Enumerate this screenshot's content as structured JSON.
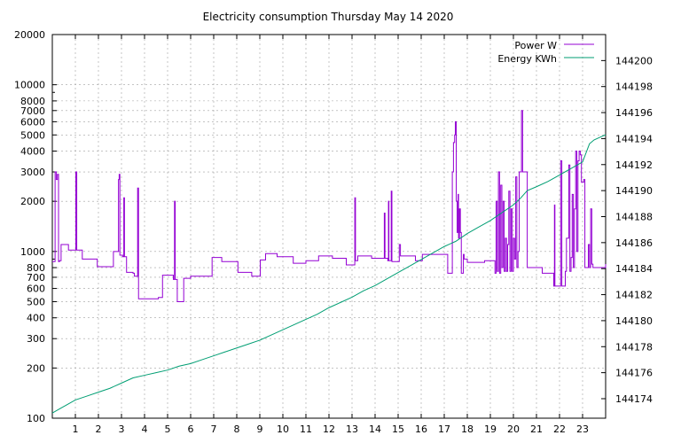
{
  "chart_data": {
    "type": "line",
    "title": "Electricity consumption Thursday May 14 2020",
    "xlabel": "",
    "ylabel": "",
    "y2label": "",
    "grid": true,
    "legend_position": "top-right",
    "x_range": [
      0,
      24
    ],
    "x_ticks": [
      1,
      2,
      3,
      4,
      5,
      6,
      7,
      8,
      9,
      10,
      11,
      12,
      13,
      14,
      15,
      16,
      17,
      18,
      19,
      20,
      21,
      22,
      23
    ],
    "y_scale": "log",
    "y_range": [
      100,
      20000
    ],
    "y_ticks": [
      100,
      200,
      300,
      400,
      500,
      600,
      700,
      800,
      1000,
      2000,
      3000,
      4000,
      5000,
      6000,
      7000,
      8000,
      10000,
      20000
    ],
    "y2_range": [
      144172.5,
      144202
    ],
    "y2_ticks": [
      144174,
      144176,
      144178,
      144180,
      144182,
      144184,
      144186,
      144188,
      144190,
      144192,
      144194,
      144196,
      144198,
      144200
    ],
    "series": [
      {
        "name": "Power W",
        "axis": "left",
        "color": "#9400d3",
        "step": true,
        "points": [
          [
            0.0,
            870
          ],
          [
            0.12,
            3000
          ],
          [
            0.17,
            2700
          ],
          [
            0.22,
            2900
          ],
          [
            0.27,
            870
          ],
          [
            0.31,
            880
          ],
          [
            0.38,
            1100
          ],
          [
            0.55,
            1100
          ],
          [
            0.7,
            1020
          ],
          [
            1.0,
            1020
          ],
          [
            1.02,
            3000
          ],
          [
            1.06,
            1020
          ],
          [
            1.3,
            900
          ],
          [
            1.9,
            900
          ],
          [
            1.95,
            810
          ],
          [
            2.6,
            810
          ],
          [
            2.65,
            1000
          ],
          [
            2.85,
            1000
          ],
          [
            2.87,
            2700
          ],
          [
            2.9,
            2900
          ],
          [
            2.93,
            950
          ],
          [
            3.05,
            930
          ],
          [
            3.1,
            2100
          ],
          [
            3.13,
            930
          ],
          [
            3.2,
            930
          ],
          [
            3.22,
            750
          ],
          [
            3.5,
            740
          ],
          [
            3.56,
            710
          ],
          [
            3.68,
            710
          ],
          [
            3.7,
            2400
          ],
          [
            3.74,
            520
          ],
          [
            4.0,
            520
          ],
          [
            4.4,
            520
          ],
          [
            4.6,
            530
          ],
          [
            4.75,
            530
          ],
          [
            4.78,
            720
          ],
          [
            5.1,
            720
          ],
          [
            5.25,
            680
          ],
          [
            5.3,
            2000
          ],
          [
            5.33,
            680
          ],
          [
            5.42,
            500
          ],
          [
            5.6,
            500
          ],
          [
            5.7,
            690
          ],
          [
            6.0,
            710
          ],
          [
            6.9,
            710
          ],
          [
            6.93,
            920
          ],
          [
            7.3,
            920
          ],
          [
            7.35,
            870
          ],
          [
            8.0,
            870
          ],
          [
            8.05,
            750
          ],
          [
            8.6,
            750
          ],
          [
            8.65,
            710
          ],
          [
            9.0,
            710
          ],
          [
            9.02,
            890
          ],
          [
            9.25,
            970
          ],
          [
            9.7,
            970
          ],
          [
            9.75,
            930
          ],
          [
            10.4,
            930
          ],
          [
            10.45,
            850
          ],
          [
            10.95,
            850
          ],
          [
            11.0,
            880
          ],
          [
            11.5,
            880
          ],
          [
            11.55,
            940
          ],
          [
            12.1,
            940
          ],
          [
            12.15,
            910
          ],
          [
            12.7,
            910
          ],
          [
            12.75,
            830
          ],
          [
            13.1,
            830
          ],
          [
            13.12,
            2100
          ],
          [
            13.15,
            880
          ],
          [
            13.25,
            940
          ],
          [
            13.8,
            940
          ],
          [
            13.85,
            910
          ],
          [
            14.3,
            910
          ],
          [
            14.35,
            910
          ],
          [
            14.4,
            1700
          ],
          [
            14.43,
            910
          ],
          [
            14.55,
            880
          ],
          [
            14.58,
            2000
          ],
          [
            14.6,
            880
          ],
          [
            14.67,
            880
          ],
          [
            14.7,
            2300
          ],
          [
            14.73,
            870
          ],
          [
            15.0,
            870
          ],
          [
            15.05,
            1100
          ],
          [
            15.1,
            940
          ],
          [
            15.7,
            940
          ],
          [
            15.75,
            880
          ],
          [
            16.0,
            880
          ],
          [
            16.05,
            960
          ],
          [
            17.1,
            960
          ],
          [
            17.15,
            740
          ],
          [
            17.3,
            740
          ],
          [
            17.35,
            3000
          ],
          [
            17.4,
            4500
          ],
          [
            17.45,
            5000
          ],
          [
            17.48,
            6000
          ],
          [
            17.52,
            2000
          ],
          [
            17.56,
            1300
          ],
          [
            17.6,
            2200
          ],
          [
            17.62,
            1200
          ],
          [
            17.66,
            1800
          ],
          [
            17.7,
            1300
          ],
          [
            17.74,
            740
          ],
          [
            17.8,
            740
          ],
          [
            17.83,
            960
          ],
          [
            17.86,
            900
          ],
          [
            18.0,
            860
          ],
          [
            18.7,
            860
          ],
          [
            18.75,
            880
          ],
          [
            19.15,
            880
          ],
          [
            19.2,
            740
          ],
          [
            19.25,
            2000
          ],
          [
            19.3,
            760
          ],
          [
            19.35,
            3000
          ],
          [
            19.4,
            740
          ],
          [
            19.45,
            2500
          ],
          [
            19.5,
            800
          ],
          [
            19.55,
            2000
          ],
          [
            19.6,
            760
          ],
          [
            19.65,
            1200
          ],
          [
            19.7,
            760
          ],
          [
            19.75,
            1100
          ],
          [
            19.8,
            2300
          ],
          [
            19.85,
            760
          ],
          [
            19.9,
            1800
          ],
          [
            19.95,
            760
          ],
          [
            20.0,
            1200
          ],
          [
            20.05,
            900
          ],
          [
            20.1,
            2800
          ],
          [
            20.15,
            800
          ],
          [
            20.2,
            1000
          ],
          [
            20.25,
            3000
          ],
          [
            20.3,
            3000
          ],
          [
            20.35,
            7000
          ],
          [
            20.4,
            3000
          ],
          [
            20.5,
            3000
          ],
          [
            20.6,
            800
          ],
          [
            21.2,
            800
          ],
          [
            21.25,
            740
          ],
          [
            21.7,
            740
          ],
          [
            21.75,
            620
          ],
          [
            21.78,
            1900
          ],
          [
            21.8,
            620
          ],
          [
            22.0,
            620
          ],
          [
            22.05,
            3500
          ],
          [
            22.1,
            620
          ],
          [
            22.2,
            620
          ],
          [
            22.25,
            760
          ],
          [
            22.3,
            1200
          ],
          [
            22.4,
            3300
          ],
          [
            22.45,
            760
          ],
          [
            22.5,
            920
          ],
          [
            22.55,
            2200
          ],
          [
            22.6,
            800
          ],
          [
            22.65,
            1800
          ],
          [
            22.7,
            4000
          ],
          [
            22.75,
            1000
          ],
          [
            22.8,
            3500
          ],
          [
            22.85,
            4000
          ],
          [
            22.9,
            3800
          ],
          [
            22.95,
            2600
          ],
          [
            23.0,
            2600
          ],
          [
            23.05,
            2700
          ],
          [
            23.1,
            800
          ],
          [
            23.15,
            800
          ],
          [
            23.25,
            1100
          ],
          [
            23.3,
            800
          ],
          [
            23.35,
            1800
          ],
          [
            23.4,
            840
          ],
          [
            23.45,
            800
          ],
          [
            23.55,
            800
          ],
          [
            23.6,
            800
          ],
          [
            24.0,
            840
          ]
        ]
      },
      {
        "name": "Energy KWh",
        "axis": "right",
        "color": "#009e73",
        "step": false,
        "points": [
          [
            0.0,
            144172.9
          ],
          [
            0.3,
            144173.2
          ],
          [
            0.6,
            144173.5
          ],
          [
            1.0,
            144173.9
          ],
          [
            1.5,
            144174.2
          ],
          [
            2.0,
            144174.5
          ],
          [
            2.5,
            144174.8
          ],
          [
            3.0,
            144175.2
          ],
          [
            3.5,
            144175.6
          ],
          [
            4.0,
            144175.8
          ],
          [
            4.5,
            144176.0
          ],
          [
            5.0,
            144176.2
          ],
          [
            5.5,
            144176.5
          ],
          [
            6.0,
            144176.7
          ],
          [
            6.5,
            144177.0
          ],
          [
            7.0,
            144177.3
          ],
          [
            7.5,
            144177.6
          ],
          [
            8.0,
            144177.9
          ],
          [
            8.5,
            144178.2
          ],
          [
            9.0,
            144178.5
          ],
          [
            9.5,
            144178.9
          ],
          [
            10.0,
            144179.3
          ],
          [
            10.5,
            144179.7
          ],
          [
            11.0,
            144180.1
          ],
          [
            11.5,
            144180.5
          ],
          [
            12.0,
            144181.0
          ],
          [
            12.5,
            144181.4
          ],
          [
            13.0,
            144181.8
          ],
          [
            13.5,
            144182.3
          ],
          [
            14.0,
            144182.7
          ],
          [
            14.5,
            144183.2
          ],
          [
            15.0,
            144183.7
          ],
          [
            15.5,
            144184.2
          ],
          [
            16.0,
            144184.7
          ],
          [
            16.5,
            144185.2
          ],
          [
            17.0,
            144185.7
          ],
          [
            17.5,
            144186.1
          ],
          [
            18.0,
            144186.7
          ],
          [
            18.5,
            144187.2
          ],
          [
            19.0,
            144187.7
          ],
          [
            19.5,
            144188.3
          ],
          [
            20.0,
            144188.9
          ],
          [
            20.3,
            144189.4
          ],
          [
            20.6,
            144190.0
          ],
          [
            21.0,
            144190.3
          ],
          [
            21.5,
            144190.7
          ],
          [
            22.0,
            144191.2
          ],
          [
            22.5,
            144191.7
          ],
          [
            23.0,
            144192.2
          ],
          [
            23.3,
            144193.6
          ],
          [
            23.5,
            144193.9
          ],
          [
            24.0,
            144194.3
          ]
        ]
      }
    ]
  }
}
